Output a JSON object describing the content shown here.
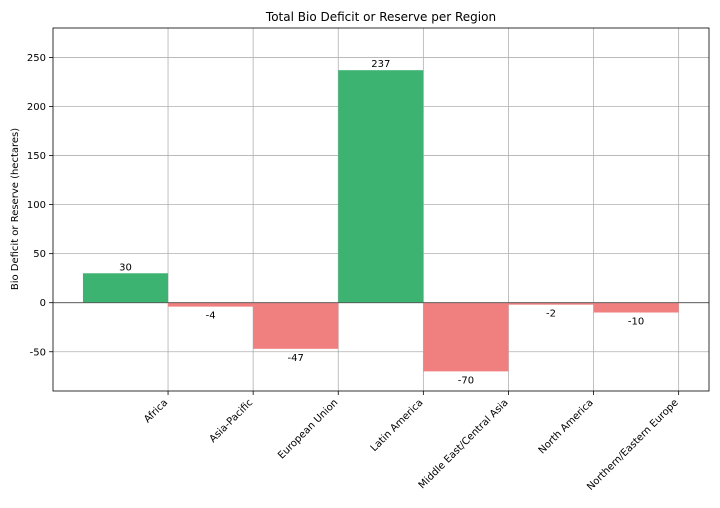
{
  "chart_data": {
    "type": "bar",
    "title": "Total Bio Deficit or Reserve per Region",
    "xlabel": "",
    "ylabel": "Bio Deficit or Reserve (hectares)",
    "categories": [
      "Africa",
      "Asia-Pacific",
      "European Union",
      "Latin America",
      "Middle East/Central Asia",
      "North America",
      "Northern/Eastern Europe"
    ],
    "values": [
      30,
      -4,
      -47,
      237,
      -70,
      -2,
      -10
    ],
    "data_labels": [
      "30",
      "-4",
      "-47",
      "237",
      "-70",
      "-2",
      "-10"
    ],
    "yticks": [
      -50,
      0,
      50,
      100,
      150,
      200,
      250
    ],
    "ylim": [
      -90,
      280
    ],
    "grid": true,
    "colors": {
      "positive": "#3cb371",
      "negative": "#f08080"
    }
  }
}
